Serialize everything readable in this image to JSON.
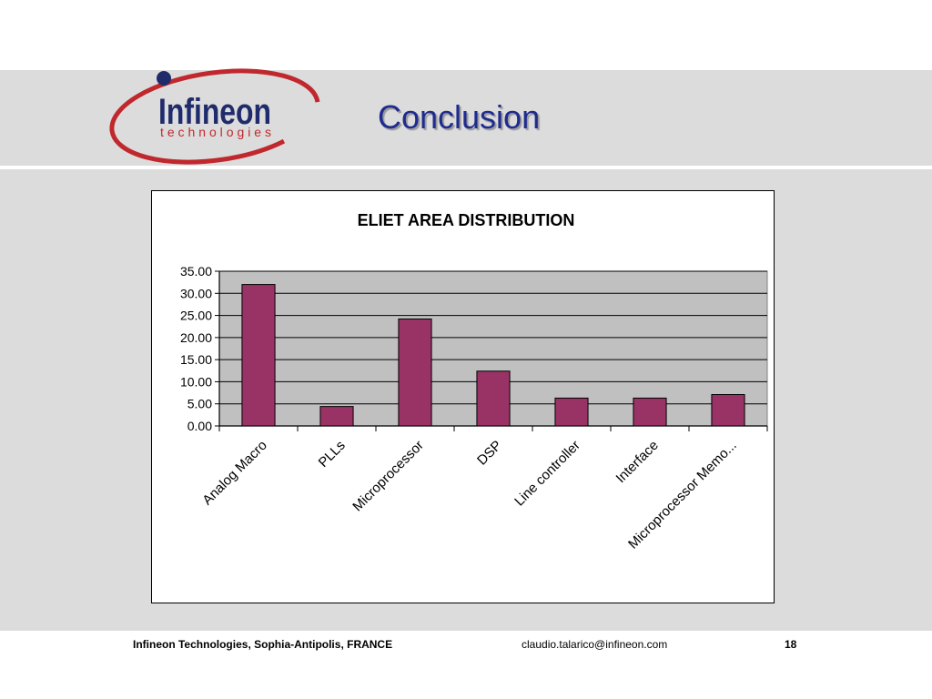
{
  "header": {
    "logo_name": "Infineon",
    "logo_sub": "technologies",
    "title": "Conclusion"
  },
  "chart_data": {
    "type": "bar",
    "title": "ELIET AREA DISTRIBUTION",
    "xlabel": "",
    "ylabel": "",
    "categories": [
      "Analog Macro",
      "PLLs",
      "Microprocessor",
      "DSP",
      "Line controller",
      "Interface",
      "Microprocessor Memo..."
    ],
    "values": [
      32.0,
      4.4,
      24.2,
      12.4,
      6.3,
      6.3,
      7.1
    ],
    "ylim": [
      0,
      35
    ],
    "yticks": [
      "0.00",
      "5.00",
      "10.00",
      "15.00",
      "20.00",
      "25.00",
      "30.00",
      "35.00"
    ],
    "grid": true,
    "colors": {
      "bar": "#993366",
      "plot_bg": "#c0c0c0"
    }
  },
  "footer": {
    "left": "Infineon Technologies, Sophia-Antipolis, FRANCE",
    "center": "claudio.talarico@infineon.com",
    "page": "18"
  }
}
